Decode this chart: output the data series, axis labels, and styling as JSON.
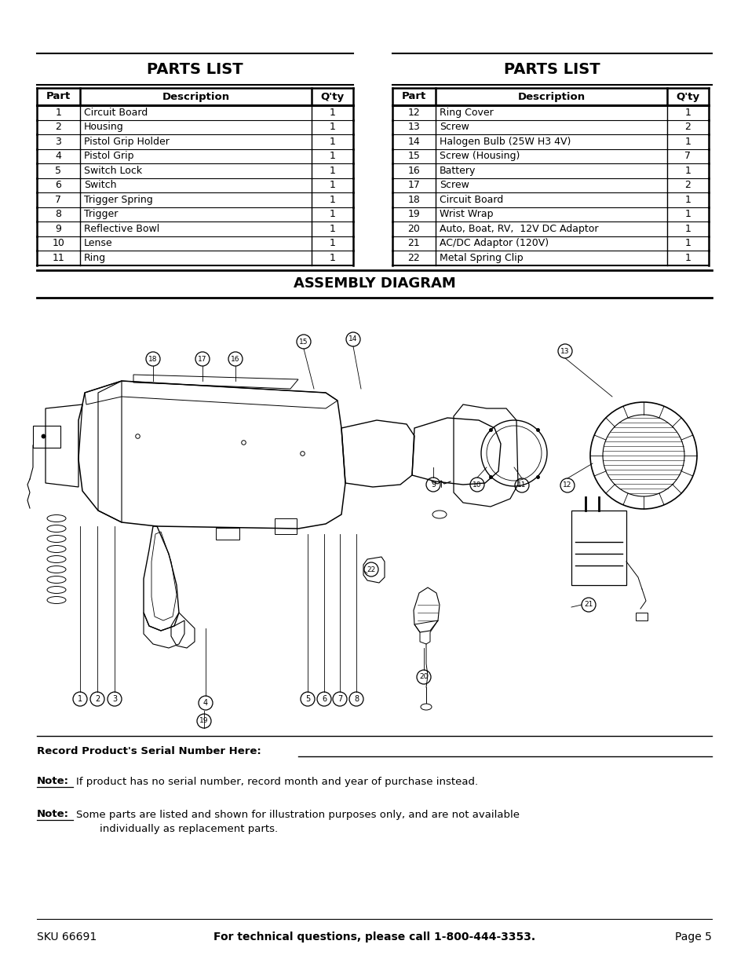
{
  "parts_list_title": "PARTS LIST",
  "assembly_diagram_title": "ASSEMBLY DIAGRAM",
  "left_parts": [
    {
      "part": "1",
      "description": "Circuit Board",
      "qty": "1"
    },
    {
      "part": "2",
      "description": "Housing",
      "qty": "1"
    },
    {
      "part": "3",
      "description": "Pistol Grip Holder",
      "qty": "1"
    },
    {
      "part": "4",
      "description": "Pistol Grip",
      "qty": "1"
    },
    {
      "part": "5",
      "description": "Switch Lock",
      "qty": "1"
    },
    {
      "part": "6",
      "description": "Switch",
      "qty": "1"
    },
    {
      "part": "7",
      "description": "Trigger Spring",
      "qty": "1"
    },
    {
      "part": "8",
      "description": "Trigger",
      "qty": "1"
    },
    {
      "part": "9",
      "description": "Reflective Bowl",
      "qty": "1"
    },
    {
      "part": "10",
      "description": "Lense",
      "qty": "1"
    },
    {
      "part": "11",
      "description": "Ring",
      "qty": "1"
    }
  ],
  "right_parts": [
    {
      "part": "12",
      "description": "Ring Cover",
      "qty": "1"
    },
    {
      "part": "13",
      "description": "Screw",
      "qty": "2"
    },
    {
      "part": "14",
      "description": "Halogen Bulb (25W H3 4V)",
      "qty": "1"
    },
    {
      "part": "15",
      "description": "Screw (Housing)",
      "qty": "7"
    },
    {
      "part": "16",
      "description": "Battery",
      "qty": "1"
    },
    {
      "part": "17",
      "description": "Screw",
      "qty": "2"
    },
    {
      "part": "18",
      "description": "Circuit Board",
      "qty": "1"
    },
    {
      "part": "19",
      "description": "Wrist Wrap",
      "qty": "1"
    },
    {
      "part": "20",
      "description": "Auto, Boat, RV,  12V DC Adaptor",
      "qty": "1"
    },
    {
      "part": "21",
      "description": "AC/DC Adaptor (120V)",
      "qty": "1"
    },
    {
      "part": "22",
      "description": "Metal Spring Clip",
      "qty": "1"
    }
  ],
  "record_serial_bold": "Record Product's Serial Number Here:",
  "note1_bold": "Note:",
  "note1_text": "If product has no serial number, record month and year of purchase instead.",
  "note2_bold": "Note:",
  "note2_line1": "Some parts are listed and shown for illustration purposes only, and are not available",
  "note2_line2": "individually as replacement parts.",
  "footer_left": "SKU 66691",
  "footer_center": "For technical questions, please call 1-800-444-3353.",
  "footer_right": "Page 5",
  "bg_color": "#ffffff"
}
